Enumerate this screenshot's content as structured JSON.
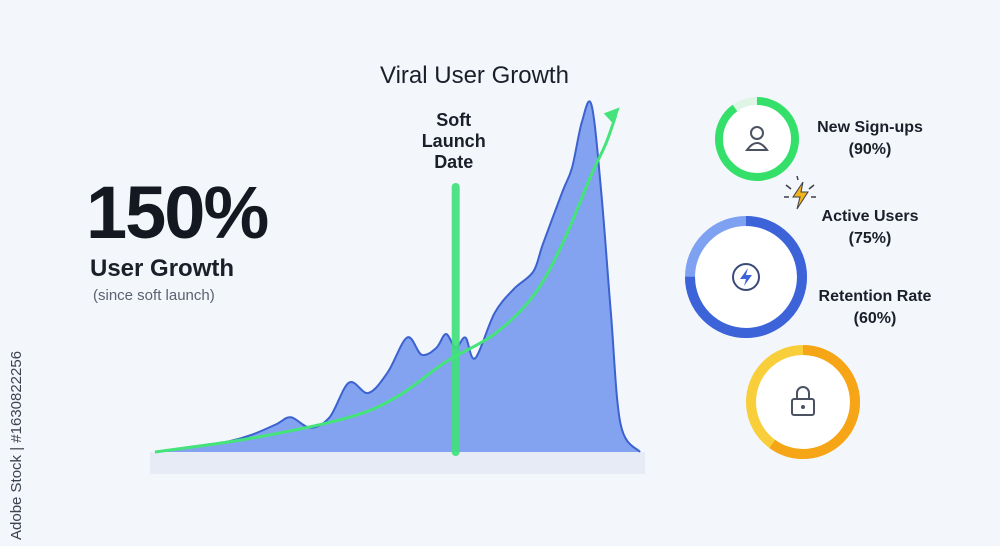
{
  "header": {
    "title": "Viral User Growth"
  },
  "kpi": {
    "value": "150%",
    "label": "User Growth",
    "sublabel": "(since soft launch)"
  },
  "chart_data": {
    "type": "area",
    "title": "Viral User Growth",
    "xlabel": "",
    "ylabel": "",
    "grid": false,
    "annotation": {
      "label_lines": [
        "Soft",
        "Launch",
        "Date"
      ],
      "x": 0.62
    },
    "area_series": {
      "x": [
        0,
        0.05,
        0.1,
        0.15,
        0.2,
        0.25,
        0.28,
        0.32,
        0.36,
        0.4,
        0.44,
        0.48,
        0.52,
        0.55,
        0.58,
        0.6,
        0.62,
        0.64,
        0.66,
        0.7,
        0.74,
        0.78,
        0.8,
        0.84,
        0.86,
        0.88,
        0.9,
        0.92,
        0.94,
        0.96,
        1.0
      ],
      "y": [
        0,
        0.01,
        0.02,
        0.03,
        0.05,
        0.08,
        0.1,
        0.07,
        0.1,
        0.2,
        0.17,
        0.23,
        0.33,
        0.28,
        0.3,
        0.34,
        0.3,
        0.33,
        0.27,
        0.4,
        0.47,
        0.52,
        0.6,
        0.75,
        0.82,
        0.95,
        1.0,
        0.75,
        0.4,
        0.08,
        0.0
      ]
    },
    "trend_series": {
      "x": [
        0,
        0.2,
        0.4,
        0.5,
        0.6,
        0.7,
        0.78,
        0.84,
        0.9,
        0.93,
        0.95
      ],
      "y": [
        0,
        0.04,
        0.1,
        0.16,
        0.26,
        0.34,
        0.45,
        0.6,
        0.8,
        0.89,
        0.97
      ]
    }
  },
  "metrics": [
    {
      "label": "New Sign-ups",
      "value": "(90%)",
      "percent": 90,
      "color": "#35e06a",
      "track": "#dff5e6",
      "icon": "person-icon"
    },
    {
      "label": "Active Users",
      "value": "(75%)",
      "percent": 75,
      "color": "#3d63d8",
      "track": "#7ea1f2",
      "icon": "lightning-icon"
    },
    {
      "label": "Retention Rate",
      "value": "(60%)",
      "percent": 60,
      "color": "#f5a516",
      "track": "#f8ce3a",
      "icon": "lock-icon"
    }
  ],
  "badge_icon": "lightning-burst-icon",
  "watermark": {
    "id": "Adobe Stock | #1630822256"
  },
  "colors": {
    "area": "#7c9ef0",
    "area_edge": "#3b62cf",
    "trend": "#45e47a",
    "marker": "#3fe07a"
  }
}
